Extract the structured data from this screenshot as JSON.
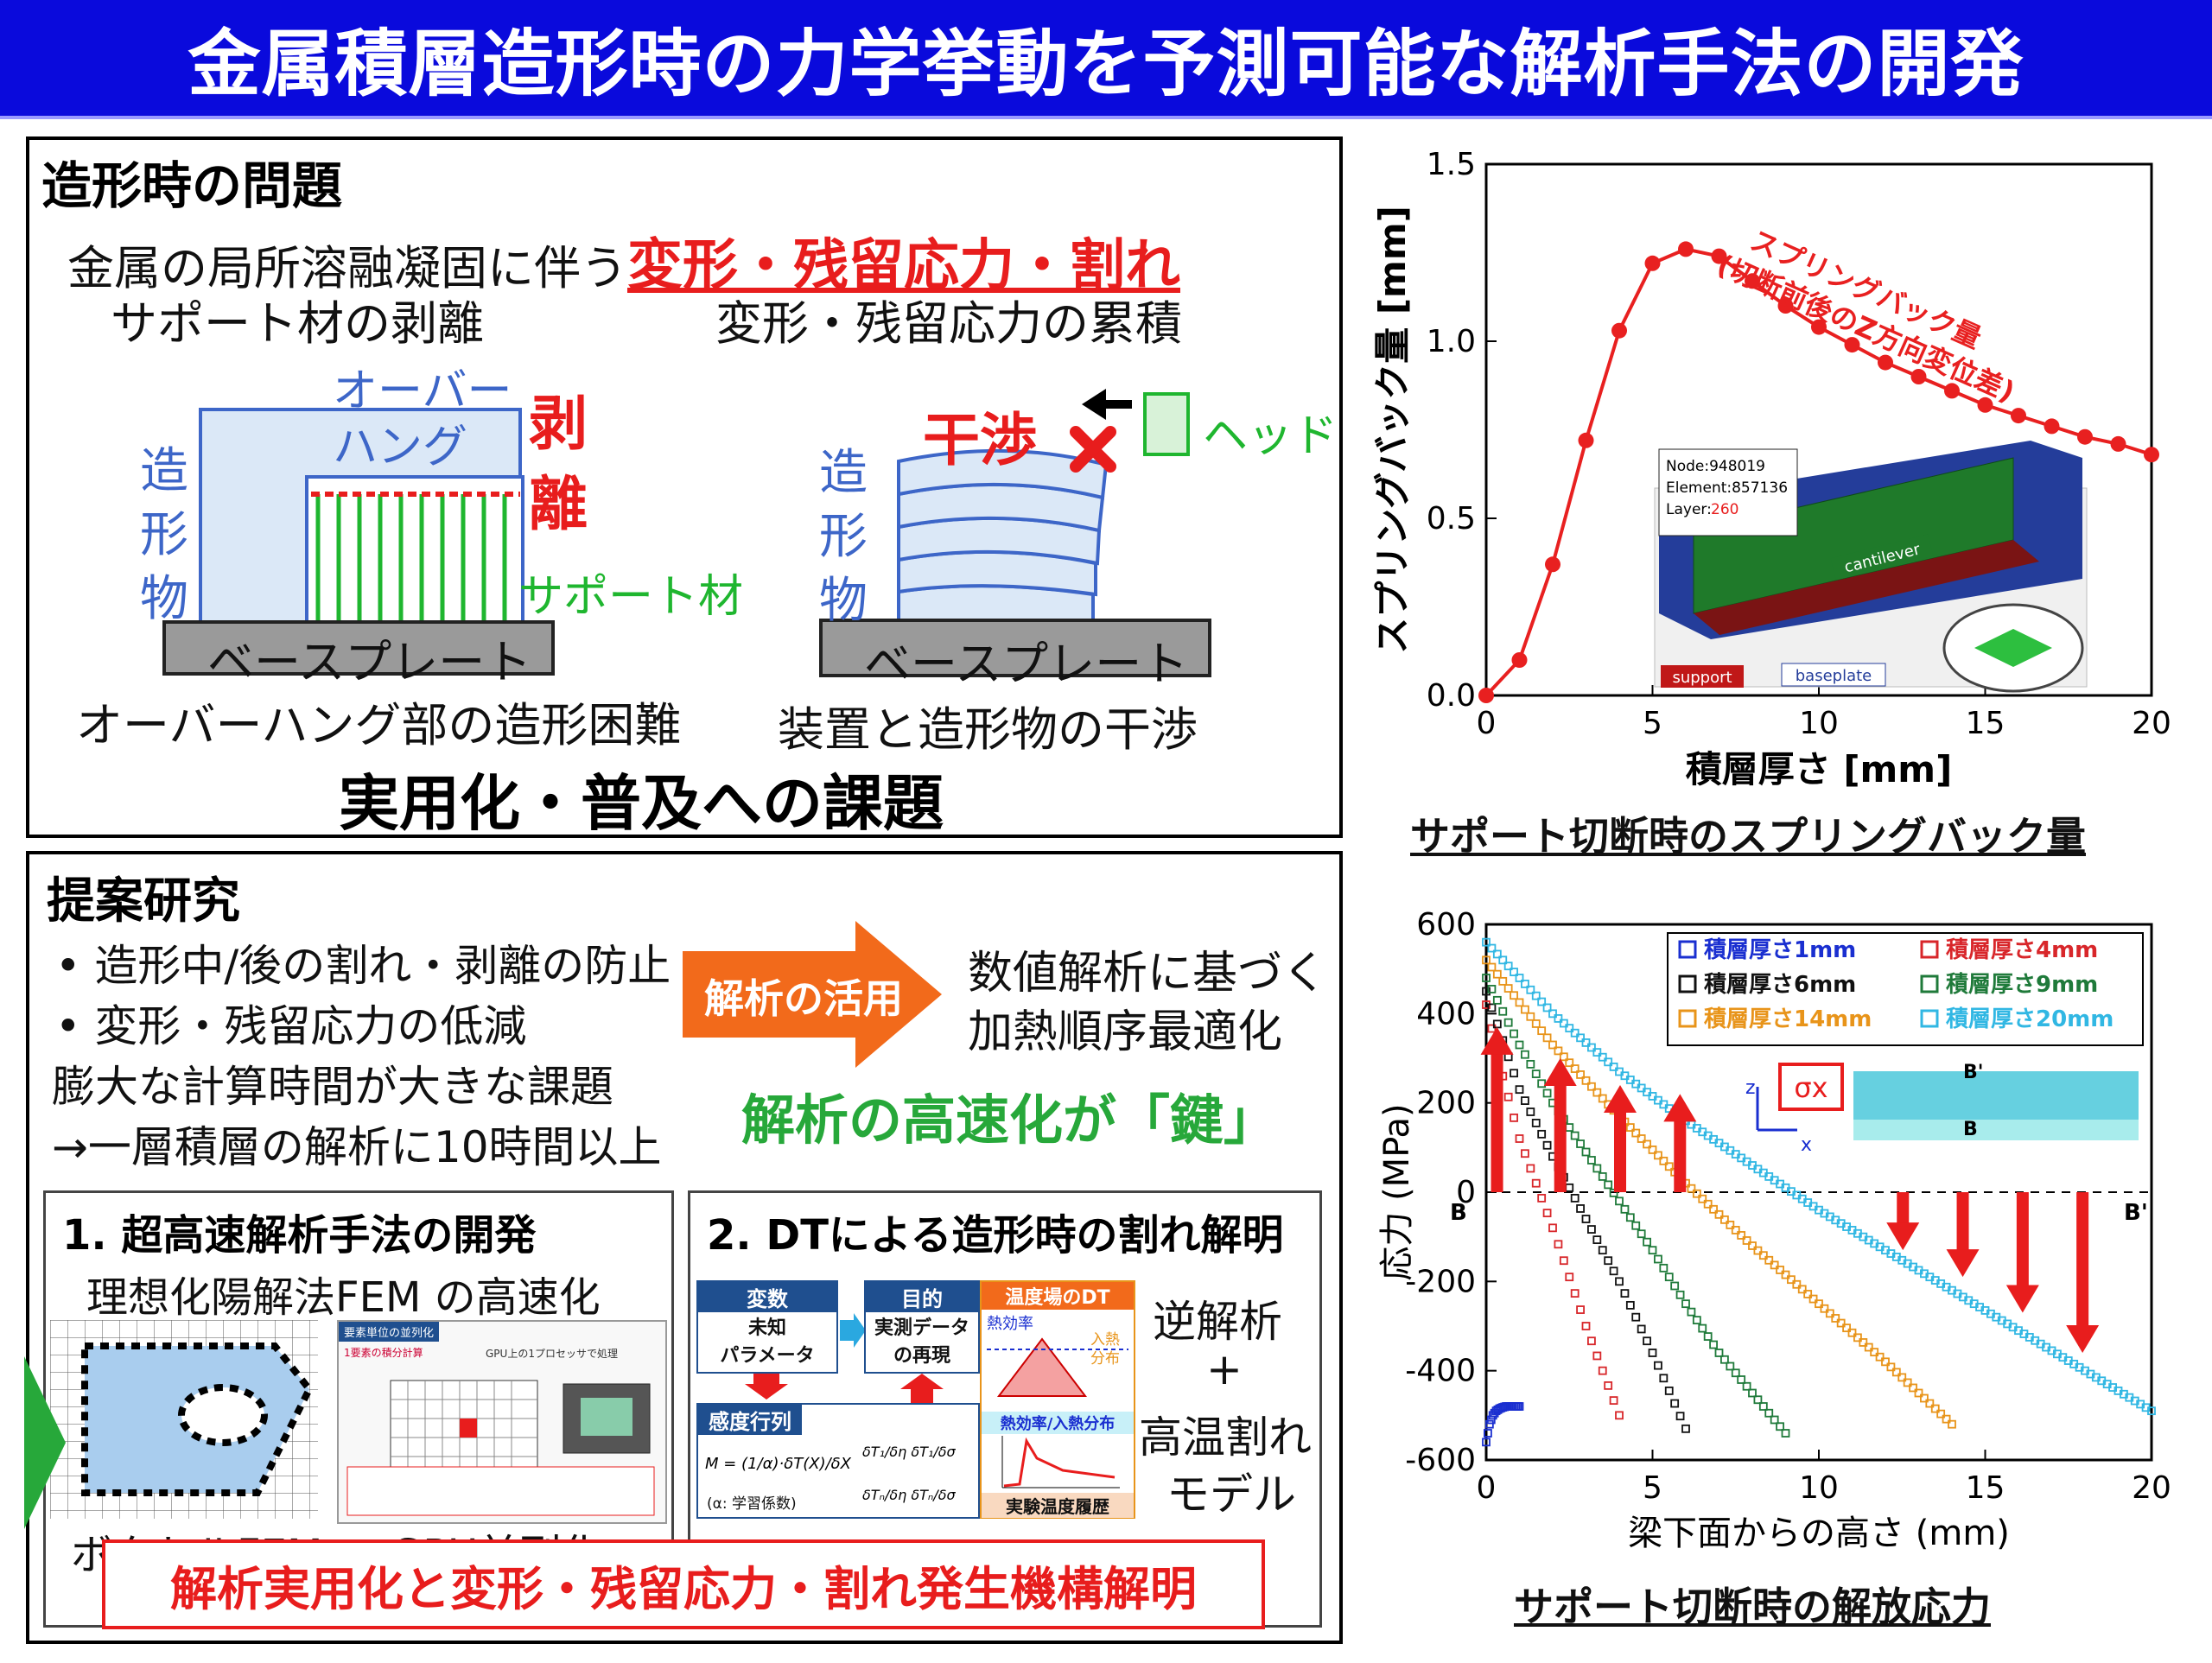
{
  "title": "金属積層造形時の力学挙動を予測可能な解析手法の開発",
  "problems": {
    "heading": "造形時の問題",
    "line1_prefix": "金属の局所溶融凝固に伴う",
    "line1_emph": "変形・残留応力・割れ",
    "left_caption_top": "サポート材の剥離",
    "right_caption_top": "変形・残留応力の累積",
    "overhang_label_1": "オーバー",
    "overhang_label_2": "ハング",
    "peel_label_1": "剥",
    "peel_label_2": "離",
    "build_label_1": "造",
    "build_label_2": "形",
    "build_label_3": "物",
    "support_label": "サポート材",
    "baseplate_label": "ベースプレート",
    "interference_label": "干渉",
    "head_label": "ヘッド",
    "left_caption_bottom": "オーバーハング部の造形困難",
    "right_caption_bottom": "装置と造形物の干渉",
    "conclusion": "実用化・普及への課題"
  },
  "proposal": {
    "heading": "提案研究",
    "bullets": [
      "• 造形中/後の割れ・剥離の防止",
      "• 変形・残留応力の低減"
    ],
    "issue_1": "膨大な計算時間が大きな課題",
    "issue_2": "→一層積層の解析に10時間以上",
    "arrow_label": "解析の活用",
    "result_1": "数値解析に基づく",
    "result_2": "加熱順序最適化",
    "key_message": "解析の高速化が「鍵」",
    "box1": {
      "title": "1. 超高速解析手法の開発",
      "subtitle": "理想化陽解法FEM の高速化",
      "caption_left": "ボクセルFEM",
      "caption_right": "GPU並列化",
      "gpu_header": "要素単位の並列化",
      "gpu_note": "1要素の積分計算",
      "gpu_note2": "GPU上の1プロセッサで処理"
    },
    "box2": {
      "title": "2. DTによる造形時の割れ解明",
      "var_label": "変数",
      "var_value_1": "未知",
      "var_value_2": "パラメータ",
      "obj_label": "目的",
      "obj_value_1": "実測データ",
      "obj_value_2": "の再現",
      "dt_label": "温度場のDT",
      "eff_label": "熱効率",
      "heat_label_1": "入熱",
      "heat_label_2": "分布",
      "sens_label": "感度行列",
      "eff_heat_label": "熱効率/入熱分布",
      "exp_label": "実験温度履歴",
      "inverse_1": "逆解析",
      "plus": "+",
      "inverse_2": "高温割れ",
      "inverse_3": "モデル",
      "alpha_note": "(α: 学習係数)"
    },
    "bottom_banner": "解析実用化と変形・残留応力・割れ発生機構解明"
  },
  "chart1_caption": "サポート切断時のスプリングバック量",
  "chart2_caption": "サポート切断時の解放応力",
  "chart_data": [
    {
      "type": "line",
      "xlabel": "積層厚さ [mm]",
      "ylabel": "スプリングバック量 [mm]",
      "xlim": [
        0,
        20
      ],
      "ylim": [
        0,
        1.5
      ],
      "xticks": [
        "0",
        "5",
        "10",
        "15",
        "20"
      ],
      "yticks": [
        "0.0",
        "0.5",
        "1.0",
        "1.5"
      ],
      "color": "#e82020",
      "x": [
        0,
        1,
        2,
        3,
        4,
        5,
        6,
        7,
        8,
        9,
        10,
        11,
        12,
        13,
        14,
        15,
        16,
        17,
        18,
        19,
        20
      ],
      "y": [
        0.0,
        0.1,
        0.37,
        0.72,
        1.03,
        1.22,
        1.26,
        1.24,
        1.17,
        1.1,
        1.04,
        0.99,
        0.94,
        0.9,
        0.86,
        0.82,
        0.79,
        0.76,
        0.73,
        0.71,
        0.68
      ],
      "annotation_1": "スプリングバック量",
      "annotation_2": "(切断前後のZ方向変位差)",
      "inset": {
        "node": "Node:948019",
        "element": "Element:857136",
        "layer_prefix": "Layer:",
        "layer_value": "260",
        "label_cantilever": "cantilever",
        "label_support": "support",
        "label_baseplate": "baseplate"
      }
    },
    {
      "type": "scatter",
      "xlabel": "梁下面からの高さ (mm)",
      "ylabel": "応力 (MPa)",
      "xlim": [
        0,
        20
      ],
      "ylim": [
        -600,
        600
      ],
      "xticks": [
        "0",
        "5",
        "10",
        "15",
        "20"
      ],
      "yticks": [
        "600",
        "400",
        "200",
        "0",
        "-200",
        "-400",
        "-600"
      ],
      "legend_position": "top-right",
      "annotation_sigma": "σx",
      "annotation_b": "B",
      "annotation_bp": "B'",
      "annotation_axis_z": "z",
      "annotation_axis_x": "x",
      "series": [
        {
          "name": "積層厚さ1mm",
          "color": "#1a2fd0",
          "x": [
            0,
            0.1,
            0.2,
            0.3,
            0.4,
            0.5,
            0.6,
            0.7,
            0.8,
            0.9,
            1.0
          ],
          "y": [
            -560,
            -520,
            -500,
            -490,
            -485,
            -482,
            -480,
            -480,
            -480,
            -480,
            -480
          ]
        },
        {
          "name": "積層厚さ4mm",
          "color": "#d8262a",
          "x": [
            0,
            0.5,
            1,
            1.5,
            2,
            2.5,
            3,
            3.5,
            4
          ],
          "y": [
            420,
            260,
            120,
            20,
            -80,
            -190,
            -300,
            -400,
            -500
          ]
        },
        {
          "name": "積層厚さ6mm",
          "color": "#111111",
          "x": [
            0,
            1,
            2,
            3,
            4,
            5,
            6
          ],
          "y": [
            450,
            230,
            80,
            -60,
            -200,
            -360,
            -530
          ]
        },
        {
          "name": "積層厚さ9mm",
          "color": "#1f7a3a",
          "x": [
            0,
            1,
            2,
            3,
            4,
            5,
            6,
            7,
            8,
            9
          ],
          "y": [
            480,
            330,
            200,
            90,
            -20,
            -130,
            -250,
            -360,
            -450,
            -540
          ]
        },
        {
          "name": "積層厚さ14mm",
          "color": "#e8941a",
          "x": [
            0,
            2,
            4,
            6,
            8,
            10,
            12,
            14
          ],
          "y": [
            520,
            330,
            170,
            20,
            -120,
            -250,
            -380,
            -520
          ]
        },
        {
          "name": "積層厚さ20mm",
          "color": "#31b7e3",
          "x": [
            0,
            2,
            4,
            6,
            8,
            10,
            12,
            14,
            16,
            18,
            20
          ],
          "y": [
            560,
            400,
            270,
            160,
            60,
            -40,
            -130,
            -220,
            -310,
            -400,
            -490
          ]
        }
      ]
    }
  ]
}
